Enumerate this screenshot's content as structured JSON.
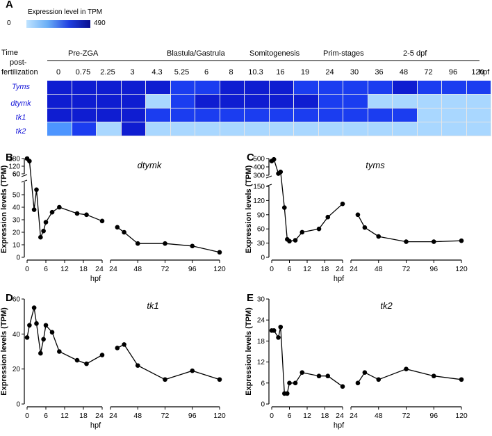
{
  "panels": {
    "A": "A",
    "B": "B",
    "C": "C",
    "D": "D",
    "E": "E"
  },
  "heatmap": {
    "legend": {
      "title": "Expression level in TPM",
      "min": "0",
      "max": "490",
      "colors": [
        "#bfe3ff",
        "#6aaef6",
        "#1f3fe0",
        "#0a0f8f"
      ]
    },
    "time_label": [
      "Time",
      "post-",
      "fertilization"
    ],
    "stages": [
      "Pre-ZGA",
      "Blastula/Gastrula",
      "Somitogenesis",
      "Prim-stages",
      "2-5 dpf"
    ],
    "timepoints": [
      "0",
      "0.75",
      "2.25",
      "3",
      "4.3",
      "5.25",
      "6",
      "8",
      "10.3",
      "16",
      "19",
      "24",
      "30",
      "36",
      "48",
      "72",
      "96",
      "120"
    ],
    "unit": "hpf",
    "genes": [
      "Tyms",
      "dtymk",
      "tk1",
      "tk2"
    ],
    "levels": [
      [
        4,
        4,
        4,
        4,
        4,
        3,
        3,
        4,
        4,
        4,
        3,
        3,
        3,
        3,
        4,
        3,
        3,
        3
      ],
      [
        4,
        4,
        4,
        4,
        1,
        3,
        4,
        4,
        4,
        4,
        4,
        3,
        3,
        1,
        1,
        1,
        1,
        1
      ],
      [
        4,
        4,
        4,
        4,
        3,
        3,
        3,
        3,
        3,
        3,
        3,
        3,
        3,
        3,
        3,
        1,
        1,
        1
      ],
      [
        2,
        3,
        1,
        4,
        1,
        1,
        1,
        1,
        1,
        1,
        1,
        1,
        1,
        1,
        1,
        1,
        1,
        1
      ]
    ],
    "level_colors": [
      "#ffffff",
      "#a9d7ff",
      "#4d95ff",
      "#1b3df0",
      "#0f1dd1"
    ]
  },
  "chart_data": [
    {
      "type": "line",
      "title": "dtymk",
      "xlabel": "hpf",
      "ylabel": "Expression levels (TPM)",
      "x": [
        0,
        0.75,
        2.25,
        3,
        4.3,
        5.25,
        6,
        8,
        10.3,
        16,
        19,
        24,
        30,
        36,
        48,
        72,
        96,
        120
      ],
      "values": [
        180,
        160,
        38,
        54,
        16,
        21,
        28,
        36,
        40,
        35,
        34,
        29,
        24,
        20,
        11,
        11,
        9,
        4
      ],
      "xticks": [
        "0",
        "6",
        "12",
        "18",
        "24",
        "24",
        "48",
        "72",
        "96",
        "120"
      ],
      "yticks_upper": [
        "60",
        "120",
        "180"
      ],
      "yticks_lower": [
        "0",
        "10",
        "20",
        "30",
        "40",
        "50",
        "60"
      ],
      "ylim": [
        0,
        180
      ]
    },
    {
      "type": "line",
      "title": "tyms",
      "xlabel": "hpf",
      "ylabel": "Expression levels (TPM)",
      "x": [
        0,
        0.75,
        2.25,
        3,
        4.3,
        5.25,
        6,
        8,
        10.3,
        16,
        19,
        24,
        30,
        36,
        48,
        72,
        96,
        120
      ],
      "values": [
        470,
        490,
        320,
        340,
        105,
        38,
        34,
        36,
        53,
        60,
        85,
        113,
        90,
        63,
        44,
        33,
        33,
        35
      ],
      "xticks": [
        "0",
        "6",
        "12",
        "18",
        "24",
        "24",
        "48",
        "72",
        "96",
        "120"
      ],
      "yticks_upper": [
        "300",
        "400",
        "500"
      ],
      "yticks_lower": [
        "0",
        "30",
        "60",
        "90",
        "120",
        "150"
      ],
      "ylim": [
        0,
        500
      ]
    },
    {
      "type": "line",
      "title": "tk1",
      "xlabel": "hpf",
      "ylabel": "Expression levels (TPM)",
      "x": [
        0,
        0.75,
        2.25,
        3,
        4.3,
        5.25,
        6,
        8,
        10.3,
        16,
        19,
        24,
        30,
        36,
        48,
        72,
        96,
        120
      ],
      "values": [
        38,
        45,
        55,
        46,
        29,
        37,
        45,
        41,
        30,
        25,
        23,
        28,
        32,
        34,
        22,
        14,
        19,
        14
      ],
      "xticks": [
        "0",
        "6",
        "12",
        "18",
        "24",
        "24",
        "48",
        "72",
        "96",
        "120"
      ],
      "yticks": [
        "0",
        "20",
        "40",
        "60"
      ],
      "ylim": [
        0,
        60
      ]
    },
    {
      "type": "line",
      "title": "tk2",
      "xlabel": "hpf",
      "ylabel": "Expression levels (TPM)",
      "x": [
        0,
        0.75,
        2.25,
        3,
        4.3,
        5.25,
        6,
        8,
        10.3,
        16,
        19,
        24,
        30,
        36,
        48,
        72,
        96,
        120
      ],
      "values": [
        21,
        21,
        19,
        22,
        3,
        3,
        6,
        6,
        9,
        8,
        8,
        5,
        6,
        9,
        7,
        10,
        8,
        7
      ],
      "xticks": [
        "0",
        "6",
        "12",
        "18",
        "24",
        "24",
        "48",
        "72",
        "96",
        "120"
      ],
      "yticks": [
        "0",
        "6",
        "12",
        "18",
        "24",
        "30"
      ],
      "ylim": [
        0,
        30
      ]
    }
  ]
}
